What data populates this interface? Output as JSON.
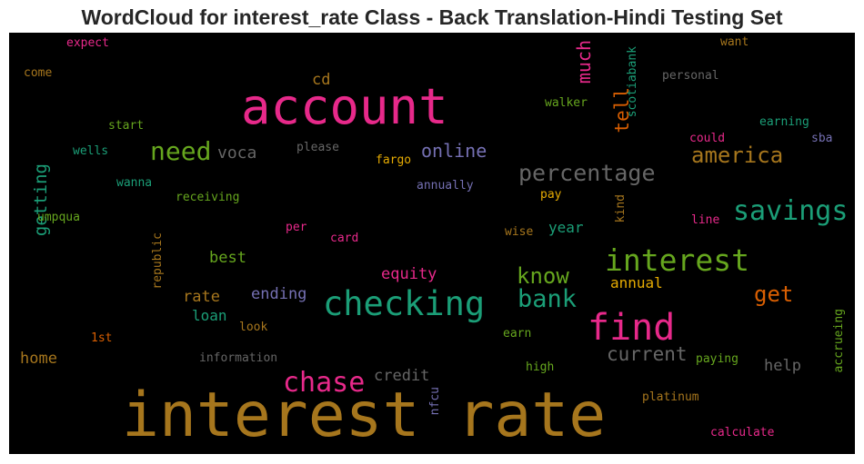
{
  "title": "WordCloud for interest_rate Class - Back Translation-Hindi Testing Set",
  "palette": {
    "background": "#000000",
    "pink": "#e7298a",
    "gold": "#a6761d",
    "teal": "#1b9e77",
    "green": "#66a61e",
    "orange": "#d95f02",
    "purple": "#7570b3",
    "yellow": "#e6ab02",
    "gray": "#666666"
  },
  "words": [
    {
      "text": "interest rate",
      "color": "#a6761d"
    },
    {
      "text": "account",
      "color": "#e7298a"
    },
    {
      "text": "checking",
      "color": "#1b9e77"
    },
    {
      "text": "find",
      "color": "#e7298a"
    },
    {
      "text": "interest",
      "color": "#66a61e"
    },
    {
      "text": "savings",
      "color": "#1b9e77"
    },
    {
      "text": "chase",
      "color": "#e7298a"
    },
    {
      "text": "percentage",
      "color": "#666666"
    },
    {
      "text": "america",
      "color": "#a6761d"
    },
    {
      "text": "bank",
      "color": "#1b9e77"
    },
    {
      "text": "need",
      "color": "#66a61e"
    },
    {
      "text": "know",
      "color": "#66a61e"
    },
    {
      "text": "get",
      "color": "#d95f02"
    },
    {
      "text": "online",
      "color": "#7570b3"
    },
    {
      "text": "current",
      "color": "#666666"
    },
    {
      "text": "much",
      "color": "#e7298a"
    },
    {
      "text": "tell",
      "color": "#d95f02"
    },
    {
      "text": "getting",
      "color": "#1b9e77"
    },
    {
      "text": "voca",
      "color": "#666666"
    },
    {
      "text": "credit",
      "color": "#666666"
    },
    {
      "text": "equity",
      "color": "#e7298a"
    },
    {
      "text": "ending",
      "color": "#7570b3"
    },
    {
      "text": "rate",
      "color": "#a6761d"
    },
    {
      "text": "best",
      "color": "#66a61e"
    },
    {
      "text": "loan",
      "color": "#1b9e77"
    },
    {
      "text": "annual",
      "color": "#e6ab02"
    },
    {
      "text": "year",
      "color": "#1b9e77"
    },
    {
      "text": "home",
      "color": "#a6761d"
    },
    {
      "text": "help",
      "color": "#666666"
    },
    {
      "text": "cd",
      "color": "#a6761d"
    },
    {
      "text": "scotiabank",
      "color": "#1b9e77"
    },
    {
      "text": "personal",
      "color": "#666666"
    },
    {
      "text": "walker",
      "color": "#66a61e"
    },
    {
      "text": "earning",
      "color": "#1b9e77"
    },
    {
      "text": "could",
      "color": "#e7298a"
    },
    {
      "text": "sba",
      "color": "#7570b3"
    },
    {
      "text": "want",
      "color": "#a6761d"
    },
    {
      "text": "expect",
      "color": "#e7298a"
    },
    {
      "text": "come",
      "color": "#a6761d"
    },
    {
      "text": "start",
      "color": "#66a61e"
    },
    {
      "text": "wells",
      "color": "#1b9e77"
    },
    {
      "text": "please",
      "color": "#666666"
    },
    {
      "text": "fargo",
      "color": "#e6ab02"
    },
    {
      "text": "wanna",
      "color": "#1b9e77"
    },
    {
      "text": "receiving",
      "color": "#66a61e"
    },
    {
      "text": "annually",
      "color": "#7570b3"
    },
    {
      "text": "umpqua",
      "color": "#66a61e"
    },
    {
      "text": "per",
      "color": "#e7298a"
    },
    {
      "text": "card",
      "color": "#e7298a"
    },
    {
      "text": "pay",
      "color": "#e6ab02"
    },
    {
      "text": "kind",
      "color": "#a6761d"
    },
    {
      "text": "line",
      "color": "#e7298a"
    },
    {
      "text": "wise",
      "color": "#a6761d"
    },
    {
      "text": "republic",
      "color": "#a6761d"
    },
    {
      "text": "look",
      "color": "#a6761d"
    },
    {
      "text": "1st",
      "color": "#d95f02"
    },
    {
      "text": "information",
      "color": "#666666"
    },
    {
      "text": "earn",
      "color": "#66a61e"
    },
    {
      "text": "high",
      "color": "#66a61e"
    },
    {
      "text": "paying",
      "color": "#66a61e"
    },
    {
      "text": "accrueing",
      "color": "#66a61e"
    },
    {
      "text": "nfcu",
      "color": "#7570b3"
    },
    {
      "text": "platinum",
      "color": "#a6761d"
    },
    {
      "text": "calculate",
      "color": "#e7298a"
    }
  ]
}
